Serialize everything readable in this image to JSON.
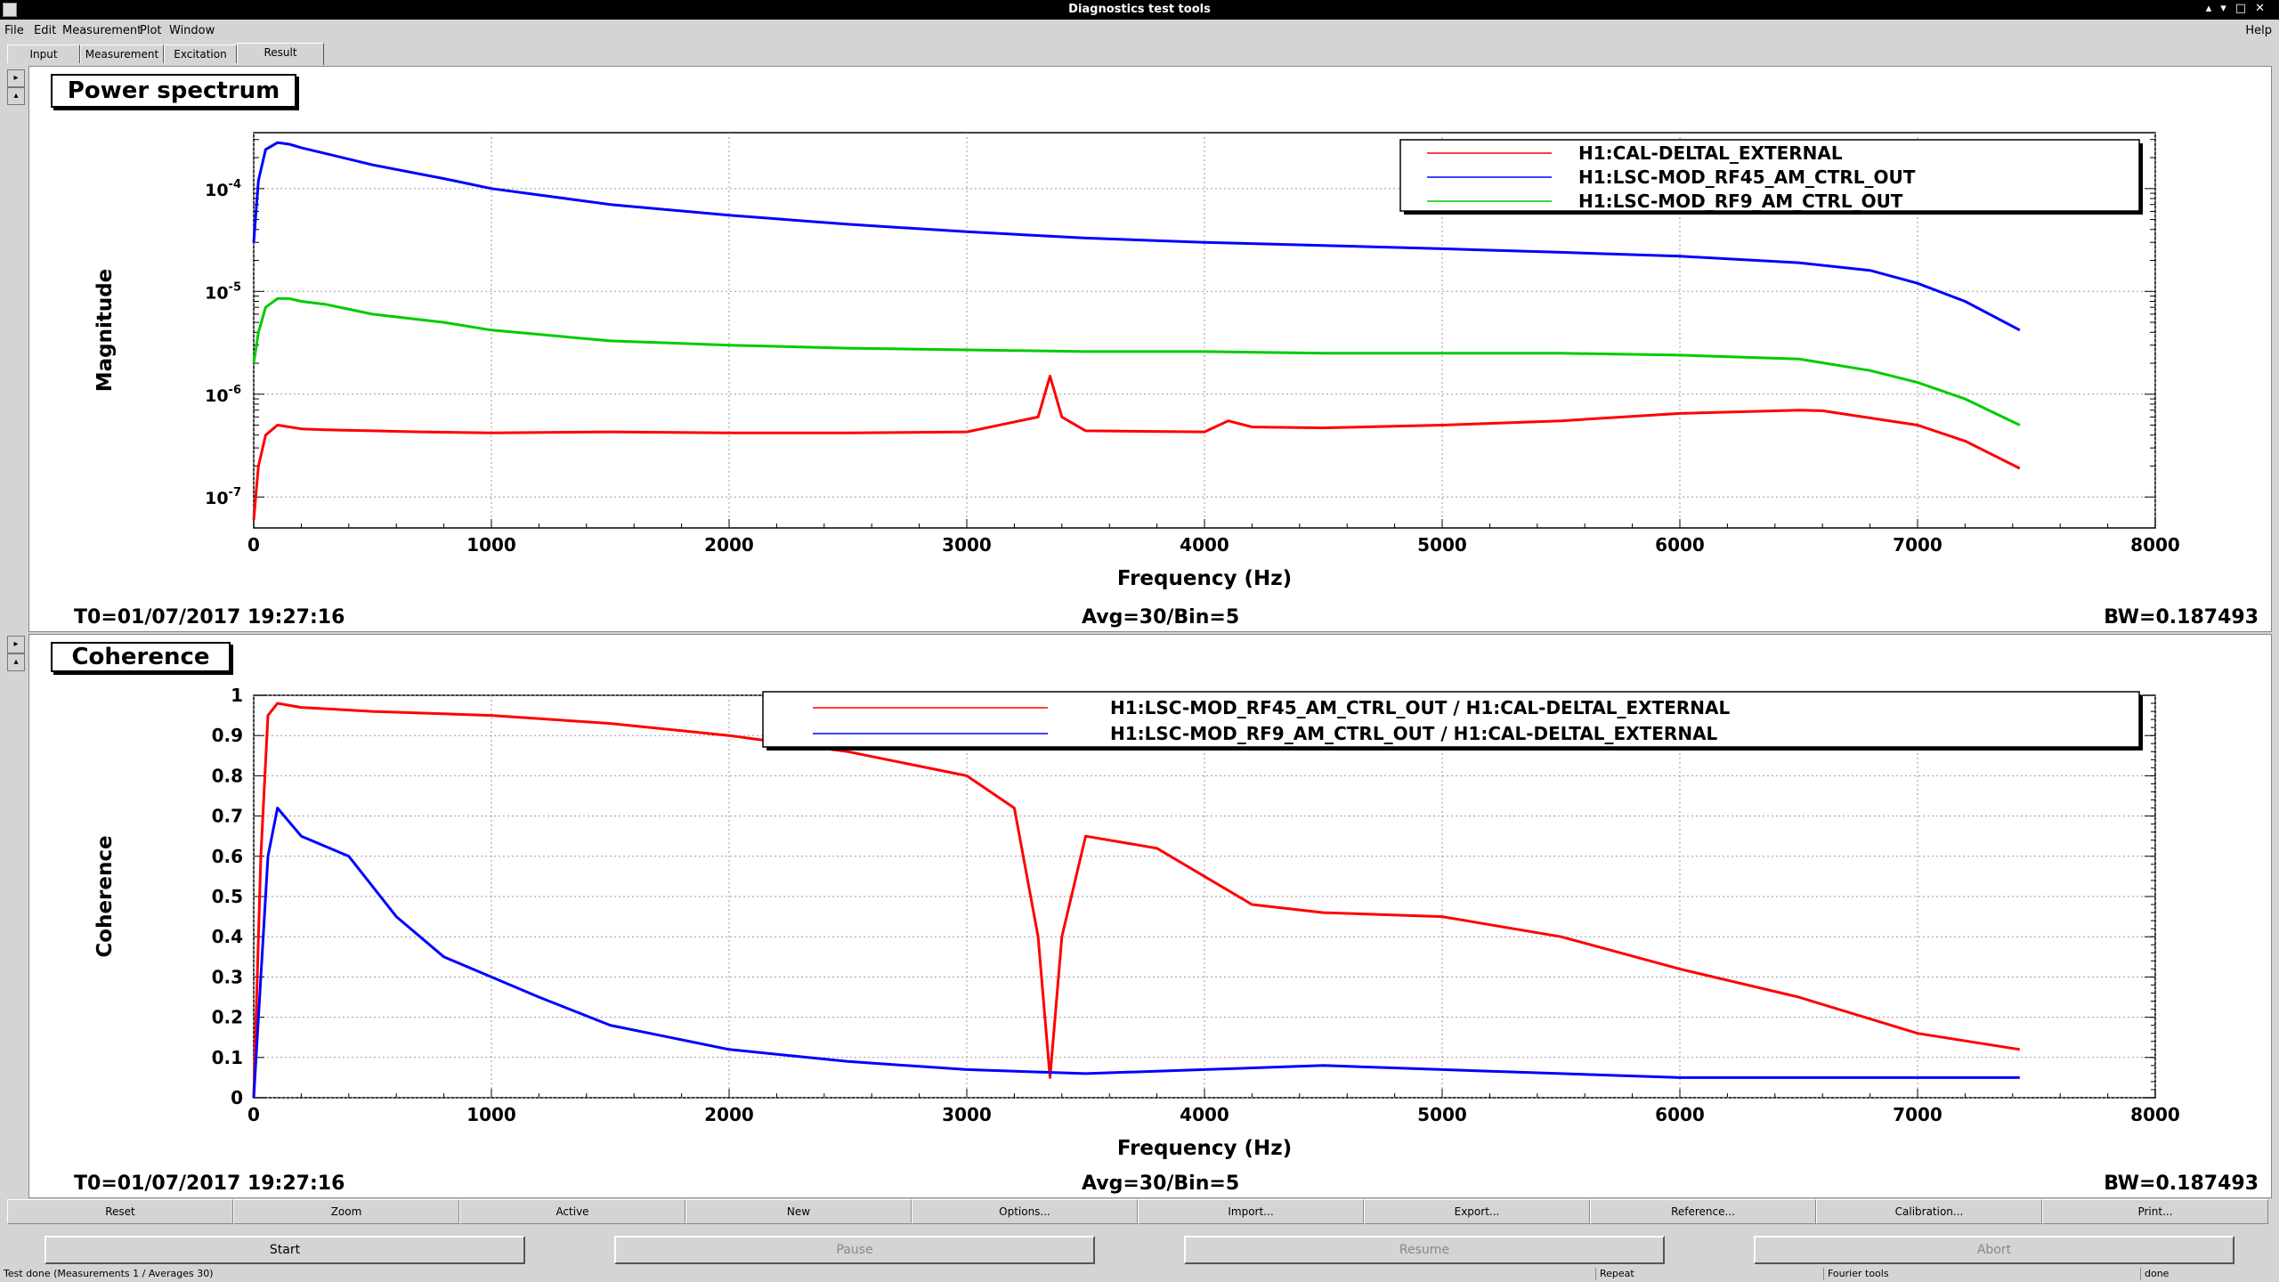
{
  "window": {
    "title": "Diagnostics test tools",
    "help": "Help"
  },
  "menu": [
    {
      "label": "File"
    },
    {
      "label": "Edit"
    },
    {
      "label": "Measurement"
    },
    {
      "label": "Plot"
    },
    {
      "label": "Window"
    }
  ],
  "tabs": [
    {
      "label": "Input"
    },
    {
      "label": "Measurement"
    },
    {
      "label": "Excitation"
    },
    {
      "label": "Result"
    }
  ],
  "active_tab": "Result",
  "panels": {
    "power": {
      "title": "Power spectrum",
      "t0": "T0=01/07/2017 19:27:16",
      "avg": "Avg=30/Bin=5",
      "bw": "BW=0.187493"
    },
    "coh": {
      "title": "Coherence",
      "t0": "T0=01/07/2017 19:27:16",
      "avg": "Avg=30/Bin=5",
      "bw": "BW=0.187493"
    }
  },
  "chart_data": [
    {
      "type": "line",
      "title": "Power spectrum",
      "xlabel": "Frequency (Hz)",
      "ylabel": "Magnitude",
      "xlim": [
        0,
        8000
      ],
      "ylim": [
        5e-08,
        0.00035
      ],
      "yscale": "log",
      "grid": true,
      "legend_position": "top-right",
      "xticks": [
        "0",
        "1000",
        "2000",
        "3000",
        "4000",
        "5000",
        "6000",
        "7000",
        "8000"
      ],
      "yticks": [
        {
          "base": "10",
          "exp": "-7",
          "v": 1e-07
        },
        {
          "base": "10",
          "exp": "-6",
          "v": 1e-06
        },
        {
          "base": "10",
          "exp": "-5",
          "v": 1e-05
        },
        {
          "base": "10",
          "exp": "-4",
          "v": 0.0001
        }
      ],
      "series": [
        {
          "name": "H1:CAL-DELTAL_EXTERNAL",
          "color": "#ff0000",
          "x": [
            0,
            20,
            50,
            100,
            200,
            300,
            500,
            700,
            1000,
            1500,
            2000,
            2500,
            3000,
            3300,
            3350,
            3400,
            3500,
            4000,
            4100,
            4200,
            4500,
            5000,
            5500,
            6000,
            6500,
            6600,
            7000,
            7200,
            7430
          ],
          "y": [
            6e-08,
            2e-07,
            4e-07,
            5e-07,
            4.6e-07,
            4.5e-07,
            4.4e-07,
            4.3e-07,
            4.2e-07,
            4.3e-07,
            4.2e-07,
            4.2e-07,
            4.3e-07,
            6e-07,
            1.5e-06,
            6e-07,
            4.4e-07,
            4.3e-07,
            5.5e-07,
            4.8e-07,
            4.7e-07,
            5e-07,
            5.5e-07,
            6.5e-07,
            7e-07,
            6.9e-07,
            5e-07,
            3.5e-07,
            1.9e-07
          ]
        },
        {
          "name": "H1:LSC-MOD_RF45_AM_CTRL_OUT",
          "color": "#0000ff",
          "x": [
            0,
            20,
            50,
            100,
            150,
            200,
            300,
            500,
            800,
            1000,
            1500,
            2000,
            2500,
            3000,
            3500,
            4000,
            4500,
            5000,
            5500,
            6000,
            6500,
            6800,
            7000,
            7200,
            7430
          ],
          "y": [
            3e-05,
            0.00012,
            0.00024,
            0.00028,
            0.00027,
            0.00025,
            0.00022,
            0.00017,
            0.000125,
            0.0001,
            7e-05,
            5.5e-05,
            4.5e-05,
            3.8e-05,
            3.3e-05,
            3e-05,
            2.8e-05,
            2.6e-05,
            2.4e-05,
            2.2e-05,
            1.9e-05,
            1.6e-05,
            1.2e-05,
            8e-06,
            4.2e-06
          ]
        },
        {
          "name": "H1:LSC-MOD_RF9_AM_CTRL_OUT",
          "color": "#00cc00",
          "x": [
            0,
            20,
            50,
            100,
            150,
            200,
            300,
            500,
            800,
            1000,
            1500,
            2000,
            2500,
            3000,
            3500,
            4000,
            4500,
            5000,
            5500,
            6000,
            6500,
            6800,
            7000,
            7200,
            7430
          ],
          "y": [
            2e-06,
            4e-06,
            7e-06,
            8.5e-06,
            8.5e-06,
            8e-06,
            7.5e-06,
            6e-06,
            5e-06,
            4.2e-06,
            3.3e-06,
            3e-06,
            2.8e-06,
            2.7e-06,
            2.6e-06,
            2.6e-06,
            2.5e-06,
            2.5e-06,
            2.5e-06,
            2.4e-06,
            2.2e-06,
            1.7e-06,
            1.3e-06,
            9e-07,
            5e-07
          ]
        }
      ]
    },
    {
      "type": "line",
      "title": "Coherence",
      "xlabel": "Frequency (Hz)",
      "ylabel": "Coherence",
      "xlim": [
        0,
        8000
      ],
      "ylim": [
        0,
        1
      ],
      "grid": true,
      "legend_position": "top-right",
      "xticks": [
        "0",
        "1000",
        "2000",
        "3000",
        "4000",
        "5000",
        "6000",
        "7000",
        "8000"
      ],
      "yticks": [
        "0",
        "0.1",
        "0.2",
        "0.3",
        "0.4",
        "0.5",
        "0.6",
        "0.7",
        "0.8",
        "0.9",
        "1"
      ],
      "series": [
        {
          "name": "H1:LSC-MOD_RF45_AM_CTRL_OUT / H1:CAL-DELTAL_EXTERNAL",
          "color": "#ff0000",
          "x": [
            0,
            30,
            60,
            100,
            200,
            500,
            1000,
            1500,
            2000,
            2500,
            3000,
            3200,
            3300,
            3350,
            3400,
            3500,
            3800,
            4000,
            4200,
            4500,
            5000,
            5500,
            6000,
            6500,
            7000,
            7430
          ],
          "y": [
            0,
            0.6,
            0.95,
            0.98,
            0.97,
            0.96,
            0.95,
            0.93,
            0.9,
            0.86,
            0.8,
            0.72,
            0.4,
            0.05,
            0.4,
            0.65,
            0.62,
            0.55,
            0.48,
            0.46,
            0.45,
            0.4,
            0.32,
            0.25,
            0.16,
            0.12
          ]
        },
        {
          "name": "H1:LSC-MOD_RF9_AM_CTRL_OUT / H1:CAL-DELTAL_EXTERNAL",
          "color": "#0000ff",
          "x": [
            0,
            30,
            60,
            100,
            200,
            400,
            600,
            800,
            1000,
            1200,
            1500,
            2000,
            2500,
            3000,
            3500,
            4000,
            4500,
            5000,
            5500,
            6000,
            6500,
            7000,
            7430
          ],
          "y": [
            0,
            0.3,
            0.6,
            0.72,
            0.65,
            0.6,
            0.45,
            0.35,
            0.3,
            0.25,
            0.18,
            0.12,
            0.09,
            0.07,
            0.06,
            0.07,
            0.08,
            0.07,
            0.06,
            0.05,
            0.05,
            0.05,
            0.05
          ]
        }
      ]
    }
  ],
  "buttons": [
    {
      "label": "Reset"
    },
    {
      "label": "Zoom"
    },
    {
      "label": "Active"
    },
    {
      "label": "New"
    },
    {
      "label": "Options..."
    },
    {
      "label": "Import..."
    },
    {
      "label": "Export..."
    },
    {
      "label": "Reference..."
    },
    {
      "label": "Calibration..."
    },
    {
      "label": "Print..."
    }
  ],
  "controls": {
    "start": "Start",
    "pause": "Pause",
    "resume": "Resume",
    "abort": "Abort"
  },
  "status": {
    "left": "Test done (Measurements 1 / Averages 30)",
    "repeat": "Repeat",
    "fourier": "Fourier tools",
    "done": "done"
  }
}
